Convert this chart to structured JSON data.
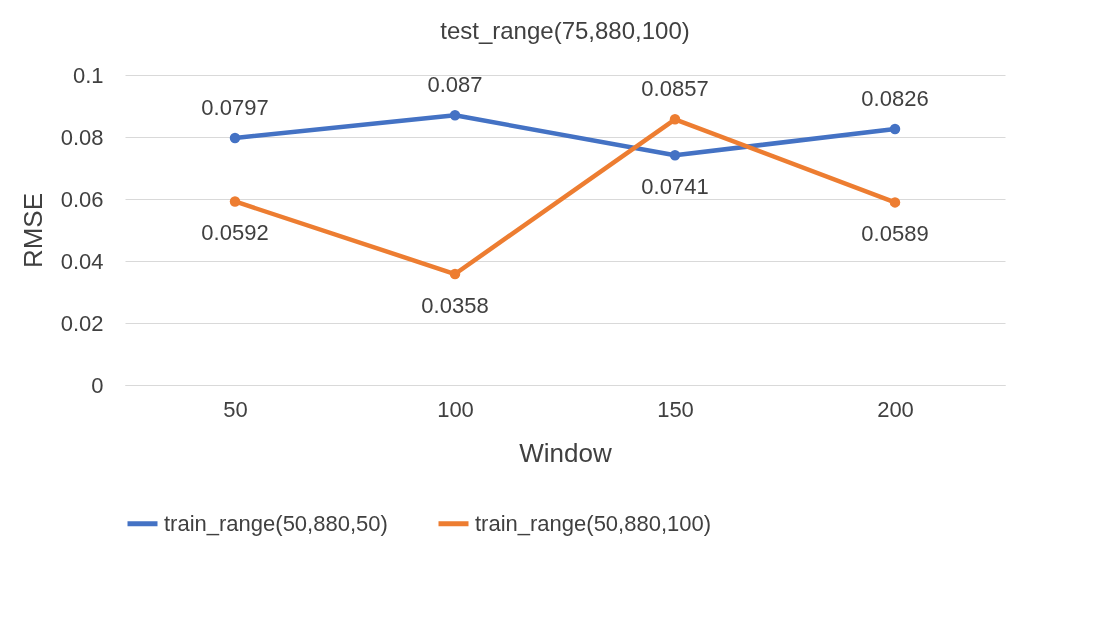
{
  "chart_data": {
    "type": "line",
    "title": "test_range(75,880,100)",
    "xlabel": "Window",
    "ylabel": "RMSE",
    "categories": [
      "50",
      "100",
      "150",
      "200"
    ],
    "series": [
      {
        "name": "train_range(50,880,50)",
        "color": "#4472c4",
        "values": [
          0.0797,
          0.087,
          0.0741,
          0.0826
        ]
      },
      {
        "name": "train_range(50,880,100)",
        "color": "#ed7d31",
        "values": [
          0.0592,
          0.0358,
          0.0857,
          0.0589
        ]
      }
    ],
    "ylim": [
      0,
      0.1
    ],
    "yticks": [
      0,
      0.02,
      0.04,
      0.06,
      0.08,
      0.1
    ],
    "grid": "y",
    "legend": "bottom",
    "marker": "circle",
    "line_style": "solid",
    "data_labels": true
  }
}
